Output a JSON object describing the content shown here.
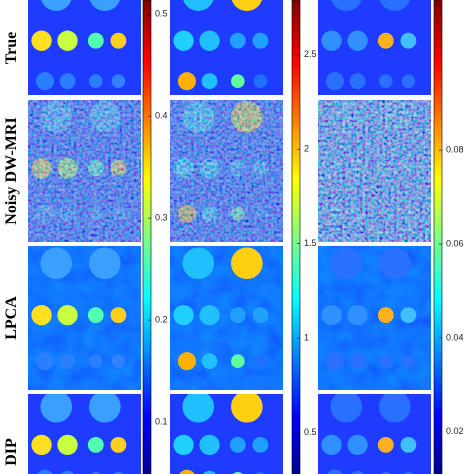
{
  "row_labels": [
    "True",
    "Noisy DW-MRI",
    "LPCA",
    "DIP"
  ],
  "colorbars": [
    {
      "lim": [
        0.049,
        0.514
      ],
      "ticks": [
        0.1,
        0.2,
        0.3,
        0.4,
        0.5
      ]
    },
    {
      "lim": [
        0.28,
        2.79
      ],
      "ticks": [
        0.5,
        1,
        1.5,
        2,
        2.5
      ]
    },
    {
      "lim": [
        0.011,
        0.112
      ],
      "ticks": [
        0.02,
        0.04,
        0.06,
        0.08
      ]
    }
  ]
}
